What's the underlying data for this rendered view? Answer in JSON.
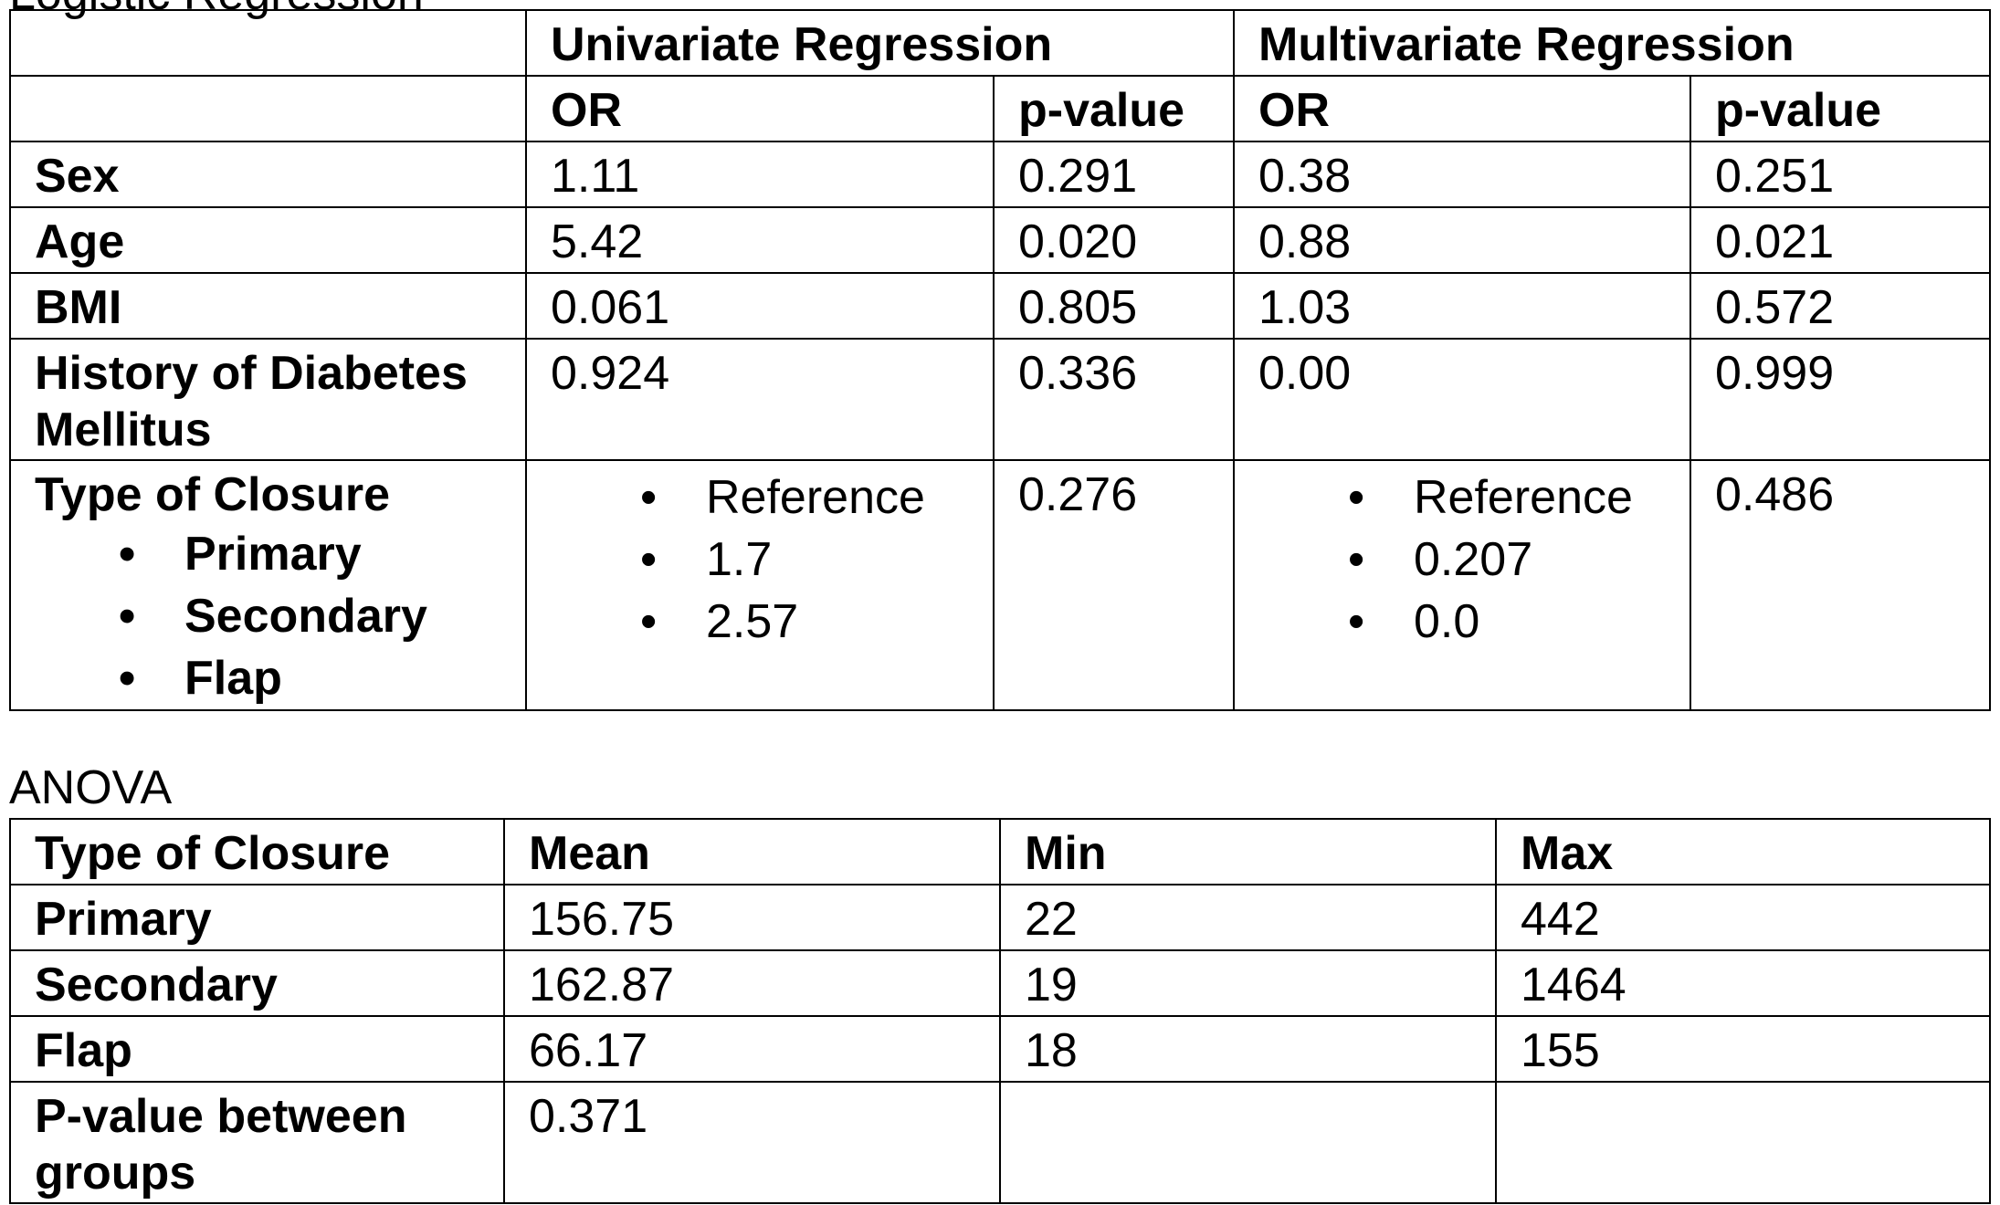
{
  "top_cut_text": "Logistic Regression",
  "regression": {
    "group_headers": [
      "Univariate Regression",
      "Multivariate Regression"
    ],
    "sub_headers": [
      "OR",
      "p-value",
      "OR",
      "p-value"
    ],
    "rows": [
      {
        "label": "Sex",
        "uni_or": "1.11",
        "uni_p": "0.291",
        "multi_or": "0.38",
        "multi_p": "0.251"
      },
      {
        "label": "Age",
        "uni_or": "5.42",
        "uni_p": "0.020",
        "multi_or": "0.88",
        "multi_p": "0.021"
      },
      {
        "label": "BMI",
        "uni_or": "0.061",
        "uni_p": "0.805",
        "multi_or": "1.03",
        "multi_p": "0.572"
      },
      {
        "label": "History of Diabetes Mellitus",
        "uni_or": "0.924",
        "uni_p": "0.336",
        "multi_or": "0.00",
        "multi_p": "0.999"
      }
    ],
    "closure": {
      "label": "Type of Closure",
      "categories": [
        "Primary",
        "Secondary",
        "Flap"
      ],
      "uni_or": [
        "Reference",
        "1.7",
        "2.57"
      ],
      "uni_p": "0.276",
      "multi_or": [
        "Reference",
        "0.207",
        "0.0"
      ],
      "multi_p": "0.486"
    }
  },
  "anova": {
    "caption": "ANOVA",
    "headers": [
      "Type of Closure",
      "Mean",
      "Min",
      "Max"
    ],
    "rows": [
      {
        "label": "Primary",
        "mean": "156.75",
        "min": "22",
        "max": "442"
      },
      {
        "label": "Secondary",
        "mean": "162.87",
        "min": "19",
        "max": "1464"
      },
      {
        "label": "Flap",
        "mean": "66.17",
        "min": "18",
        "max": "155"
      }
    ],
    "pvalue_label": "P-value between groups",
    "pvalue": "0.371"
  }
}
